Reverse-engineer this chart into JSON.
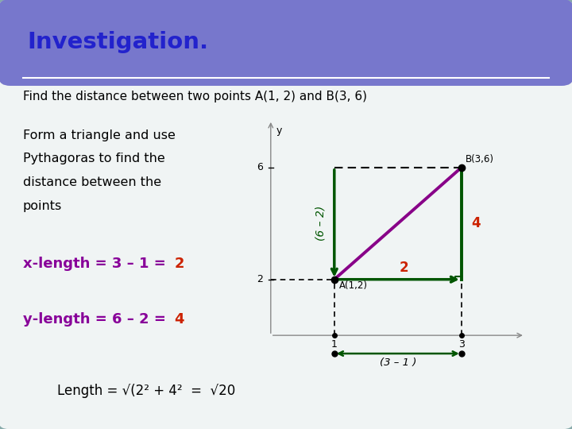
{
  "title": "Investigation.",
  "title_bg": "#7777cc",
  "title_color": "#2222cc",
  "slide_bg": "#88aaaa",
  "content_bg": "#f0f4f4",
  "header_text": "Find the distance between two points A(1, 2) and B(3, 6)",
  "left_text_lines": [
    "Form a triangle and use",
    "Pythagoras to find the",
    "distance between the",
    "points"
  ],
  "point_A": [
    1,
    2
  ],
  "point_B": [
    3,
    6
  ],
  "triangle_color": "#005500",
  "hyp_color": "#880088",
  "xlim": [
    -0.3,
    4.2
  ],
  "ylim": [
    -1.2,
    8.0
  ]
}
